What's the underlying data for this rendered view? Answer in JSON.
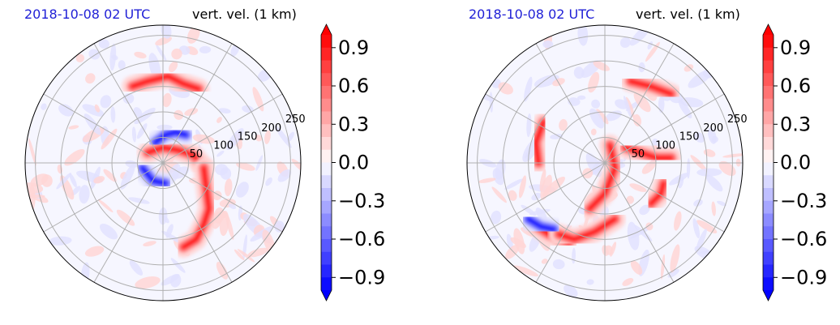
{
  "colors": {
    "pos_strong": "#ff0000",
    "pos_mid": "#ff7a7a",
    "pos_weak": "#ffd6d6",
    "neg_strong": "#0000ff",
    "neg_mid": "#7a7aff",
    "neg_weak": "#e2e2ff",
    "date_text": "#1f1fd6"
  },
  "chart_data": [
    {
      "type": "heatmap",
      "projection": "polar",
      "title_left": "2018-10-08 02 UTC",
      "title_right": "vert. vel. (1 km)",
      "radial_ticks": [
        "50",
        "100",
        "150",
        "200",
        "250"
      ],
      "colorbar": {
        "ticks": [
          "0.9",
          "0.6",
          "0.3",
          "0.0",
          "−0.3",
          "−0.6",
          "−0.9"
        ],
        "range": [
          -1.0,
          1.0
        ],
        "cmap": "bwr"
      },
      "features": [
        {
          "type": "band",
          "sign": "pos",
          "points": [
            [
              -60,
              150
            ],
            [
              -30,
              160
            ],
            [
              10,
              170
            ],
            [
              40,
              155
            ],
            [
              70,
              145
            ]
          ]
        },
        {
          "type": "band",
          "sign": "pos",
          "points": [
            [
              -30,
              20
            ],
            [
              0,
              30
            ],
            [
              30,
              25
            ],
            [
              60,
              15
            ],
            [
              80,
              -10
            ]
          ]
        },
        {
          "type": "band",
          "sign": "pos",
          "points": [
            [
              80,
              -10
            ],
            [
              85,
              -50
            ],
            [
              90,
              -90
            ],
            [
              80,
              -120
            ],
            [
              65,
              -150
            ],
            [
              40,
              -165
            ]
          ]
        },
        {
          "type": "band",
          "sign": "neg",
          "points": [
            [
              -15,
              40
            ],
            [
              5,
              55
            ],
            [
              25,
              60
            ],
            [
              45,
              55
            ]
          ]
        },
        {
          "type": "band",
          "sign": "neg",
          "points": [
            [
              -40,
              -10
            ],
            [
              -20,
              -35
            ],
            [
              5,
              -40
            ]
          ]
        }
      ]
    },
    {
      "type": "heatmap",
      "projection": "polar",
      "title_left": "2018-10-08 02 UTC",
      "title_right": "vert. vel. (1 km)",
      "radial_ticks": [
        "50",
        "100",
        "150",
        "200",
        "250"
      ],
      "colorbar": {
        "ticks": [
          "0.9",
          "0.6",
          "0.3",
          "0.0",
          "−0.3",
          "−0.6",
          "−0.9"
        ],
        "range": [
          -1.0,
          1.0
        ],
        "cmap": "bwr"
      },
      "features": [
        {
          "type": "band",
          "sign": "pos",
          "points": [
            [
              50,
              160
            ],
            [
              90,
              150
            ],
            [
              130,
              135
            ]
          ]
        },
        {
          "type": "band",
          "sign": "pos",
          "points": [
            [
              -120,
              80
            ],
            [
              -135,
              40
            ],
            [
              -130,
              0
            ]
          ]
        },
        {
          "type": "band",
          "sign": "pos",
          "points": [
            [
              40,
              30
            ],
            [
              70,
              20
            ],
            [
              100,
              10
            ],
            [
              130,
              10
            ]
          ]
        },
        {
          "type": "band",
          "sign": "pos",
          "points": [
            [
              10,
              35
            ],
            [
              20,
              -10
            ],
            [
              0,
              -60
            ],
            [
              -30,
              -90
            ]
          ]
        },
        {
          "type": "band",
          "sign": "pos",
          "points": [
            [
              -140,
              -120
            ],
            [
              -110,
              -140
            ],
            [
              -70,
              -155
            ]
          ]
        },
        {
          "type": "band",
          "sign": "pos",
          "points": [
            [
              -90,
              -140
            ],
            [
              -60,
              -150
            ],
            [
              -20,
              -135
            ],
            [
              20,
              -110
            ]
          ]
        },
        {
          "type": "band",
          "sign": "neg",
          "points": [
            [
              -150,
              -110
            ],
            [
              -125,
              -125
            ],
            [
              -100,
              -130
            ]
          ]
        },
        {
          "type": "band",
          "sign": "pos",
          "points": [
            [
              90,
              -80
            ],
            [
              110,
              -60
            ],
            [
              115,
              -40
            ]
          ]
        }
      ]
    }
  ]
}
